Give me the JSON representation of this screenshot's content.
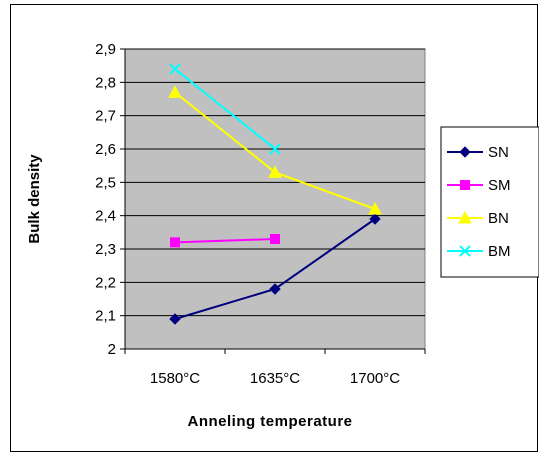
{
  "chart_data": {
    "type": "line",
    "title": "",
    "xlabel": "Anneling temperature",
    "ylabel": "Bulk density",
    "categories": [
      "1580°C",
      "1635°C",
      "1700°C"
    ],
    "ylim": [
      2,
      2.9
    ],
    "yticks": [
      "2",
      "2,1",
      "2,2",
      "2,3",
      "2,4",
      "2,5",
      "2,6",
      "2,7",
      "2,8",
      "2,9"
    ],
    "grid": "horizontal",
    "legend_position": "right",
    "series": [
      {
        "name": "SN",
        "values": [
          2.09,
          2.18,
          2.39
        ],
        "color": "#00007f",
        "marker": "diamond"
      },
      {
        "name": "SM",
        "values": [
          2.32,
          2.33,
          null
        ],
        "color": "#ff00ff",
        "marker": "square"
      },
      {
        "name": "BN",
        "values": [
          2.77,
          2.53,
          2.42
        ],
        "color": "#ffff00",
        "marker": "triangle"
      },
      {
        "name": "BM",
        "values": [
          2.84,
          2.6,
          null
        ],
        "color": "#00ffff",
        "marker": "x"
      }
    ],
    "plot_background": "#c0c0c0"
  }
}
